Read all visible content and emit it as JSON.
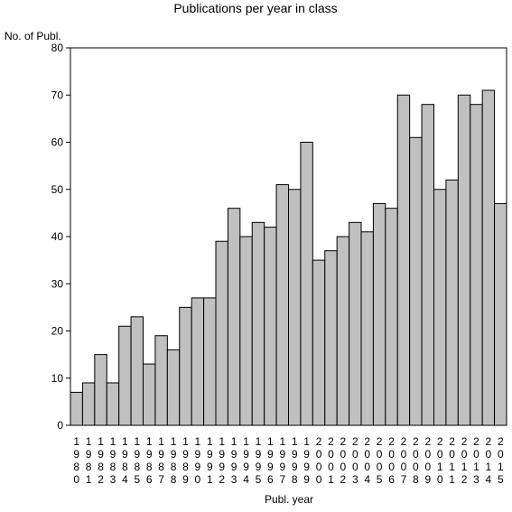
{
  "chart_data": {
    "type": "bar",
    "title": "Publications per year in class",
    "ylabel": "No. of Publ.",
    "xlabel": "Publ. year",
    "ylim": [
      0,
      80
    ],
    "yticks": [
      0,
      10,
      20,
      30,
      40,
      50,
      60,
      70,
      80
    ],
    "grid": false,
    "colors": {
      "bar_fill": "#c0c0c0",
      "bar_stroke": "#000000"
    },
    "categories": [
      "1980",
      "1981",
      "1982",
      "1983",
      "1984",
      "1985",
      "1986",
      "1987",
      "1988",
      "1989",
      "1990",
      "1991",
      "1992",
      "1993",
      "1994",
      "1995",
      "1996",
      "1997",
      "1998",
      "1999",
      "2000",
      "2001",
      "2002",
      "2003",
      "2004",
      "2005",
      "2006",
      "2007",
      "2008",
      "2009",
      "2010",
      "2011",
      "2012",
      "2013",
      "2014",
      "2015"
    ],
    "values": [
      7,
      9,
      15,
      9,
      21,
      23,
      13,
      19,
      16,
      25,
      27,
      27,
      39,
      46,
      40,
      43,
      42,
      51,
      50,
      60,
      35,
      37,
      40,
      43,
      41,
      47,
      46,
      70,
      61,
      68,
      50,
      52,
      70,
      68,
      71,
      47
    ]
  }
}
